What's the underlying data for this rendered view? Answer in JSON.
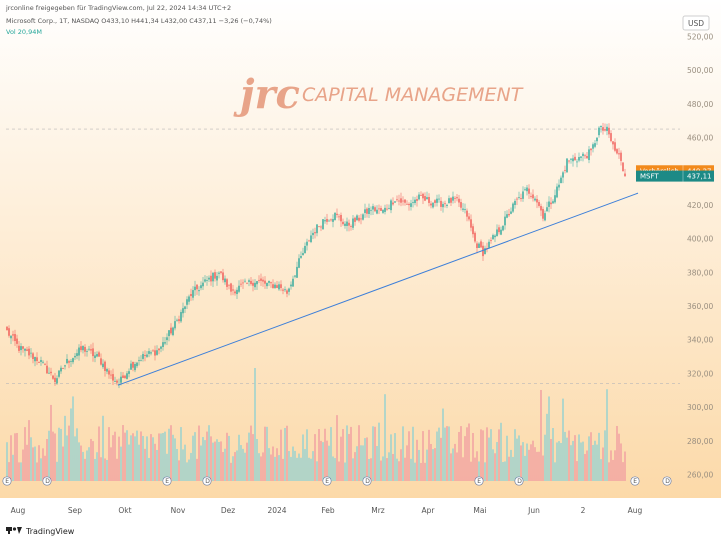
{
  "header": {
    "shared_by": "jrconline freigegeben für TradingView.com, Jul 22, 2024 14:34 UTC+2",
    "symbol_line": "Microsoft Corp., 1T, NASDAQ  O433,10  H441,34  L432,00  C437,11  −3,26 (−0,74%)",
    "volume_line": "Vol  20,94M"
  },
  "currency_button": "USD",
  "logo": {
    "mark": "jrc",
    "text": "CAPITAL MANAGEMENT"
  },
  "footer": {
    "brand": "TradingView"
  },
  "colors": {
    "up": "#26a69a",
    "down": "#ef5350",
    "vol_up": "#9fd3ce",
    "vol_down": "#f2a5a3",
    "trendline": "#3d7fd9",
    "premarket_tag": "#f28a1c",
    "last_tag": "#1c8a86",
    "bg_top": "#ffffff",
    "bg_bottom": "#fcd9a8"
  },
  "chart_data": {
    "type": "candlestick",
    "symbol": "MSFT",
    "y_ticks": [
      260,
      280,
      300,
      320,
      340,
      360,
      380,
      400,
      420,
      440,
      460,
      480,
      500,
      520
    ],
    "ylim": [
      252,
      525
    ],
    "y_tick_labels": [
      "260,00",
      "280,00",
      "300,00",
      "320,00",
      "340,00",
      "360,00",
      "380,00",
      "400,00",
      "420,00",
      "440,00",
      "460,00",
      "480,00",
      "500,00",
      "520,00"
    ],
    "x_labels": [
      "Aug",
      "Sep",
      "Okt",
      "Nov",
      "Dez",
      "2024",
      "Feb",
      "Mrz",
      "Apr",
      "Mai",
      "Jun",
      "2",
      "Aug"
    ],
    "anchors": [
      {
        "i": 0,
        "c": 345
      },
      {
        "i": 6,
        "c": 335
      },
      {
        "i": 16,
        "c": 328
      },
      {
        "i": 24,
        "c": 316
      },
      {
        "i": 30,
        "c": 327
      },
      {
        "i": 38,
        "c": 335
      },
      {
        "i": 46,
        "c": 329
      },
      {
        "i": 52,
        "c": 318
      },
      {
        "i": 56,
        "c": 314
      },
      {
        "i": 62,
        "c": 325
      },
      {
        "i": 68,
        "c": 330
      },
      {
        "i": 76,
        "c": 334
      },
      {
        "i": 84,
        "c": 349
      },
      {
        "i": 92,
        "c": 367
      },
      {
        "i": 100,
        "c": 375
      },
      {
        "i": 106,
        "c": 380
      },
      {
        "i": 112,
        "c": 369
      },
      {
        "i": 118,
        "c": 372
      },
      {
        "i": 124,
        "c": 375
      },
      {
        "i": 130,
        "c": 373
      },
      {
        "i": 136,
        "c": 372
      },
      {
        "i": 140,
        "c": 368
      },
      {
        "i": 146,
        "c": 386
      },
      {
        "i": 152,
        "c": 402
      },
      {
        "i": 158,
        "c": 411
      },
      {
        "i": 164,
        "c": 414
      },
      {
        "i": 170,
        "c": 408
      },
      {
        "i": 176,
        "c": 412
      },
      {
        "i": 182,
        "c": 418
      },
      {
        "i": 188,
        "c": 416
      },
      {
        "i": 194,
        "c": 424
      },
      {
        "i": 200,
        "c": 420
      },
      {
        "i": 206,
        "c": 424
      },
      {
        "i": 212,
        "c": 422
      },
      {
        "i": 218,
        "c": 421
      },
      {
        "i": 224,
        "c": 423
      },
      {
        "i": 230,
        "c": 414
      },
      {
        "i": 234,
        "c": 398
      },
      {
        "i": 238,
        "c": 392
      },
      {
        "i": 242,
        "c": 398
      },
      {
        "i": 248,
        "c": 409
      },
      {
        "i": 254,
        "c": 421
      },
      {
        "i": 260,
        "c": 429
      },
      {
        "i": 264,
        "c": 425
      },
      {
        "i": 268,
        "c": 414
      },
      {
        "i": 272,
        "c": 422
      },
      {
        "i": 276,
        "c": 432
      },
      {
        "i": 280,
        "c": 446
      },
      {
        "i": 286,
        "c": 448
      },
      {
        "i": 292,
        "c": 451
      },
      {
        "i": 296,
        "c": 465
      },
      {
        "i": 300,
        "c": 464
      },
      {
        "i": 304,
        "c": 452
      },
      {
        "i": 306,
        "c": 449
      },
      {
        "i": 309,
        "c": 437.11
      }
    ],
    "candle_count": 310,
    "trendline": {
      "from": {
        "i": 56,
        "y": 313
      },
      "to": {
        "i": 316,
        "y": 427
      }
    },
    "dashed_levels": [
      465,
      314
    ],
    "last_price": 437.11,
    "premarket_price": 440.27,
    "price_tags": [
      {
        "label": "Vorbörslich",
        "value": "440,27",
        "price": 440.27,
        "color_key": "premarket_tag"
      },
      {
        "label": "MSFT",
        "value": "437,11",
        "price": 437.11,
        "color_key": "last_tag"
      }
    ],
    "event_markers": [
      {
        "i": 0,
        "label": "E"
      },
      {
        "i": 20,
        "label": "D"
      },
      {
        "i": 80,
        "label": "E"
      },
      {
        "i": 100,
        "label": "D"
      },
      {
        "i": 160,
        "label": "E"
      },
      {
        "i": 180,
        "label": "D"
      },
      {
        "i": 236,
        "label": "E"
      },
      {
        "i": 256,
        "label": "D"
      },
      {
        "i": 314,
        "label": "E"
      },
      {
        "i": 330,
        "label": "D"
      }
    ]
  }
}
